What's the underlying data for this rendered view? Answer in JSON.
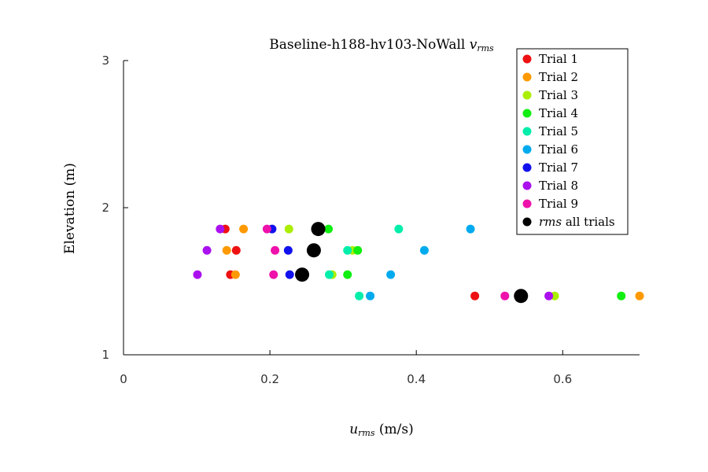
{
  "chart_data": {
    "type": "scatter",
    "title_main": "Baseline-h188-hv103-NoWall ",
    "title_var": "v",
    "title_sub": "rms",
    "xlabel_var": "u",
    "xlabel_sub": "rms",
    "xlabel_unit": " (m/s)",
    "ylabel": "Elevation (m)",
    "xlim": [
      0,
      0.705
    ],
    "ylim": [
      1,
      3
    ],
    "xticks": [
      {
        "value": 0,
        "label": "0"
      },
      {
        "value": 0.2,
        "label": "0.2"
      },
      {
        "value": 0.4,
        "label": "0.4"
      },
      {
        "value": 0.6,
        "label": "0.6"
      }
    ],
    "yticks": [
      {
        "value": 1,
        "label": "1"
      },
      {
        "value": 2,
        "label": "2"
      },
      {
        "value": 3,
        "label": "3"
      }
    ],
    "legend_position": "top-right",
    "series": [
      {
        "name": "Trial 1",
        "color": "#ee1111",
        "points": [
          [
            0.139,
            1.855
          ],
          [
            0.154,
            1.71
          ],
          [
            0.146,
            1.545
          ],
          [
            0.48,
            1.4
          ]
        ]
      },
      {
        "name": "Trial 2",
        "color": "#ff9900",
        "points": [
          [
            0.164,
            1.855
          ],
          [
            0.141,
            1.71
          ],
          [
            0.153,
            1.545
          ],
          [
            0.705,
            1.4
          ]
        ]
      },
      {
        "name": "Trial 3",
        "color": "#aaee00",
        "points": [
          [
            0.226,
            1.855
          ],
          [
            0.313,
            1.71
          ],
          [
            0.285,
            1.545
          ],
          [
            0.589,
            1.4
          ]
        ]
      },
      {
        "name": "Trial 4",
        "color": "#11ee11",
        "points": [
          [
            0.28,
            1.855
          ],
          [
            0.32,
            1.71
          ],
          [
            0.306,
            1.545
          ],
          [
            0.68,
            1.4
          ]
        ]
      },
      {
        "name": "Trial 5",
        "color": "#00eeaa",
        "points": [
          [
            0.376,
            1.855
          ],
          [
            0.306,
            1.71
          ],
          [
            0.281,
            1.545
          ],
          [
            0.322,
            1.4
          ]
        ]
      },
      {
        "name": "Trial 6",
        "color": "#00aaee",
        "points": [
          [
            0.474,
            1.855
          ],
          [
            0.411,
            1.71
          ],
          [
            0.365,
            1.545
          ],
          [
            0.337,
            1.4
          ]
        ]
      },
      {
        "name": "Trial 7",
        "color": "#1111ee",
        "points": [
          [
            0.203,
            1.855
          ],
          [
            0.225,
            1.71
          ],
          [
            0.227,
            1.545
          ]
        ]
      },
      {
        "name": "Trial 8",
        "color": "#aa11ee",
        "points": [
          [
            0.132,
            1.855
          ],
          [
            0.114,
            1.71
          ],
          [
            0.101,
            1.545
          ],
          [
            0.581,
            1.4
          ]
        ]
      },
      {
        "name": "Trial 9",
        "color": "#ee11aa",
        "points": [
          [
            0.196,
            1.855
          ],
          [
            0.207,
            1.71
          ],
          [
            0.205,
            1.545
          ],
          [
            0.521,
            1.4
          ]
        ]
      },
      {
        "name": "rms",
        "name_suffix": " all trials",
        "color": "#000000",
        "large": true,
        "points": [
          [
            0.266,
            1.855
          ],
          [
            0.26,
            1.71
          ],
          [
            0.244,
            1.545
          ],
          [
            0.543,
            1.4
          ]
        ]
      }
    ]
  }
}
